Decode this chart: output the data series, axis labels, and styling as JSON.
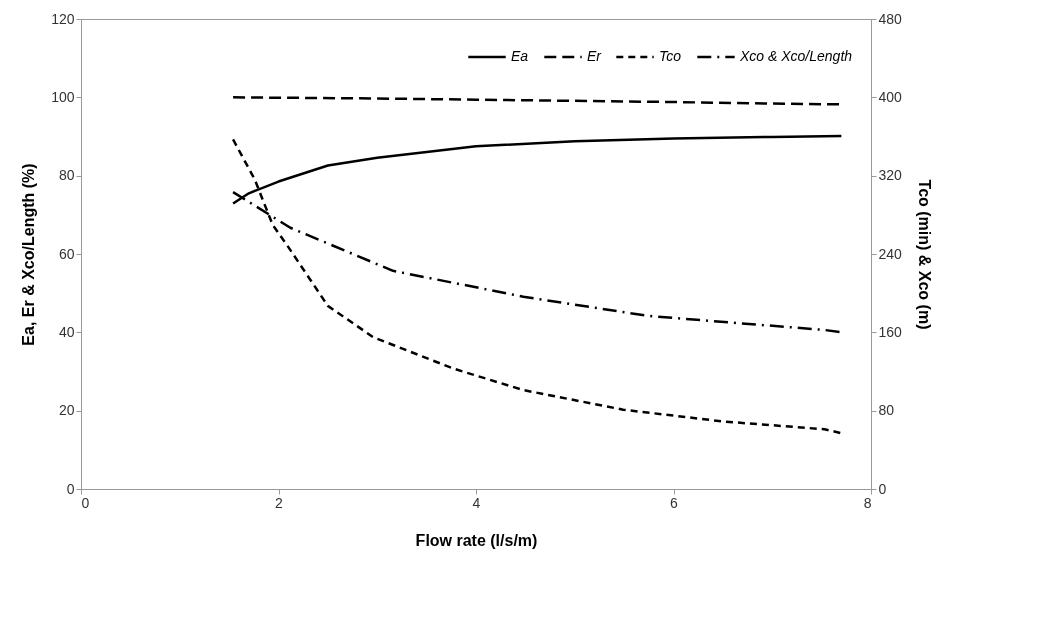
{
  "chart_data": {
    "type": "line",
    "xlabel": "Flow rate (l/s/m)",
    "ylabel": "Ea, Er  & Xco/Length (%)",
    "y2label": "Tco (min) & Xco (m)",
    "xlim": [
      0,
      8
    ],
    "xticks": [
      0,
      2,
      4,
      6,
      8
    ],
    "ylim": [
      0,
      120
    ],
    "yticks": [
      0,
      20,
      40,
      60,
      80,
      100,
      120
    ],
    "y2lim": [
      0,
      480
    ],
    "y2ticks": [
      0,
      80,
      160,
      240,
      320,
      400,
      480
    ],
    "grid": false,
    "legend": "top right",
    "marker": "none",
    "series": [
      {
        "name": "Ea",
        "color": "#000000",
        "line_style": "solid",
        "x": [
          1.54,
          1.7,
          2.0,
          2.5,
          3.0,
          4.0,
          5.0,
          6.0,
          7.0,
          7.7
        ],
        "values": [
          72.9,
          75.5,
          78.5,
          82.6,
          84.6,
          87.5,
          88.8,
          89.5,
          89.9,
          90.1
        ]
      },
      {
        "name": "Er",
        "color": "#000000",
        "line_style": "longdash",
        "x": [
          1.54,
          3.0,
          4.0,
          5.0,
          6.0,
          7.0,
          7.7
        ],
        "values": [
          100,
          99.7,
          99.4,
          99.1,
          98.8,
          98.4,
          98.2
        ]
      },
      {
        "name": "Tco",
        "color": "#000000",
        "line_style": "dashed",
        "axis": "y2",
        "x": [
          1.54,
          1.76,
          1.94,
          2.1,
          2.5,
          2.96,
          3.77,
          4.48,
          5.49,
          6.5,
          7.53,
          7.7
        ],
        "values": [
          357,
          316,
          270,
          247,
          187,
          155,
          123,
          101,
          81,
          69,
          61,
          57
        ]
      },
      {
        "name": "Xco & Xco/Length",
        "color": "#000000",
        "line_style": "dashdot",
        "x": [
          1.54,
          2.12,
          3.16,
          4.48,
          5.74,
          7.53,
          7.7
        ],
        "values": [
          75.8,
          66.7,
          55.7,
          49.1,
          44.2,
          40.6,
          40.0
        ]
      }
    ]
  }
}
